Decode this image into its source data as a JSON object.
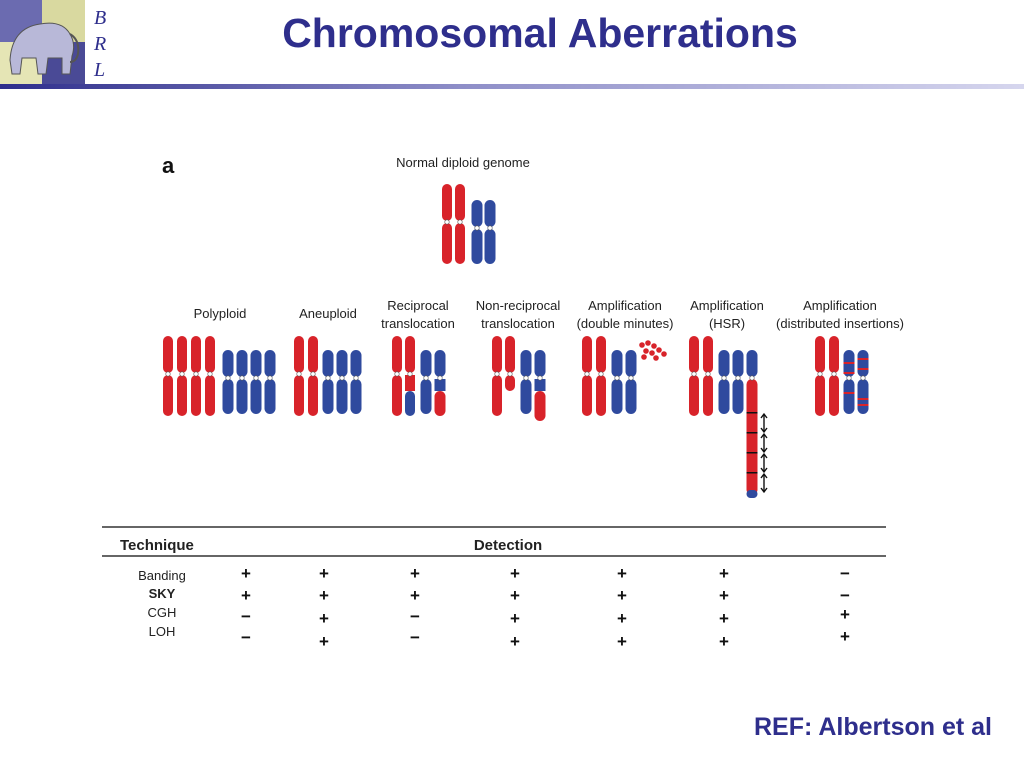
{
  "header": {
    "title": "Chromosomal Aberrations",
    "logo_text": "BRL"
  },
  "figure": {
    "panel_letter": "a",
    "normal_label": "Normal diploid genome",
    "categories": [
      [
        "Polyploid"
      ],
      [
        "Aneuploid"
      ],
      [
        "Reciprocal",
        "translocation"
      ],
      [
        "Non-reciprocal",
        "translocation"
      ],
      [
        "Amplification",
        "(double minutes)"
      ],
      [
        "Amplification",
        "(HSR)"
      ],
      [
        "Amplification",
        "(distributed insertions)"
      ]
    ]
  },
  "table": {
    "technique_header": "Technique",
    "detection_header": "Detection",
    "rows": [
      {
        "technique": "Banding",
        "results": [
          "+",
          "+",
          "+",
          "+",
          "+",
          "+",
          "−"
        ]
      },
      {
        "technique": "SKY",
        "results": [
          "+",
          "+",
          "+",
          "+",
          "+",
          "+",
          "−"
        ]
      },
      {
        "technique": "CGH",
        "results": [
          "−",
          "+",
          "−",
          "+",
          "+",
          "+",
          "+"
        ]
      },
      {
        "technique": "LOH",
        "results": [
          "−",
          "+",
          "−",
          "+",
          "+",
          "+",
          "+"
        ]
      }
    ]
  },
  "footer": {
    "reference": "REF: Albertson et al"
  },
  "colors": {
    "title": "#2e2e8c",
    "red_chromosome": "#d8232a",
    "blue_chromosome": "#2f4a9e"
  }
}
